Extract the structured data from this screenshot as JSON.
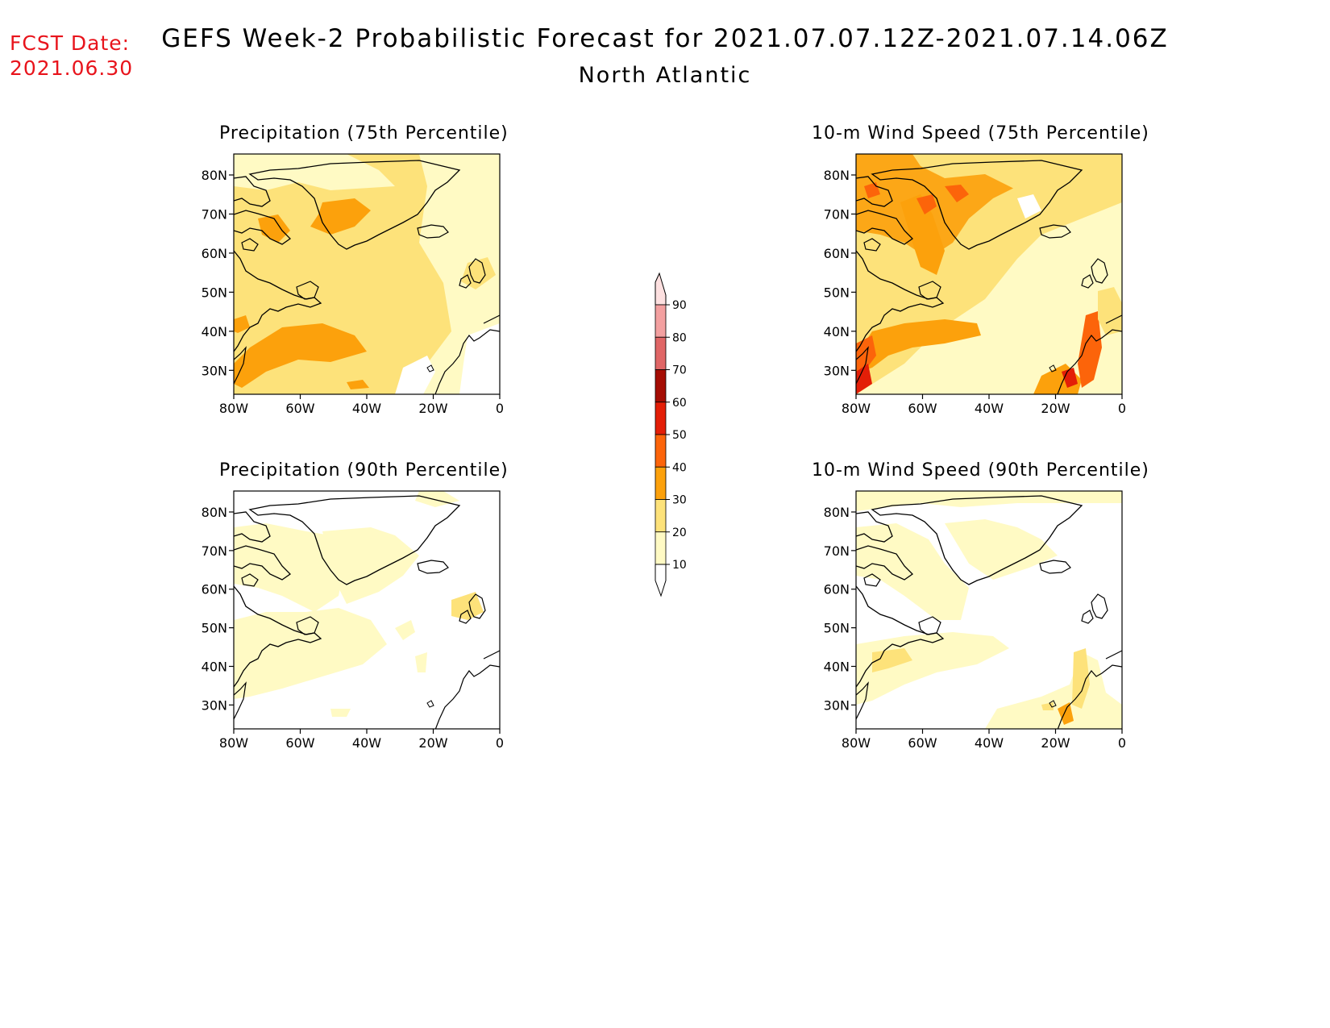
{
  "header": {
    "fcst_label": "FCST Date:",
    "fcst_date": "2021.06.30",
    "title": "GEFS Week-2 Probabilistic Forecast for 2021.07.07.12Z-2021.07.14.06Z",
    "region": "North Atlantic"
  },
  "axes": {
    "lat_labels": [
      "80N",
      "70N",
      "60N",
      "50N",
      "40N",
      "30N"
    ],
    "lon_labels": [
      "80W",
      "60W",
      "40W",
      "20W",
      "0"
    ]
  },
  "panels": [
    {
      "title": "Precipitation (75th Percentile)",
      "dominant_level": "20-30"
    },
    {
      "title": "Precipitation (90th Percentile)",
      "dominant_level": "0-10"
    },
    {
      "title": "10-m Wind Speed (75th Percentile)",
      "dominant_level": "20-30"
    },
    {
      "title": "10-m Wind Speed (90th Percentile)",
      "dominant_level": "0-10"
    }
  ],
  "colorbar": {
    "labels": [
      "90",
      "80",
      "70",
      "60",
      "50",
      "40",
      "30",
      "20",
      "10"
    ],
    "colors": {
      "10_20": "#fffac4",
      "20_30": "#fde27a",
      "30_40": "#fca10c",
      "40_50": "#fc640a",
      "50_60": "#e31e07",
      "60_70": "#a50d04",
      "70_80": "#e06666",
      "80_90": "#f3a0a0",
      "90_100": "#fde0e0"
    }
  }
}
